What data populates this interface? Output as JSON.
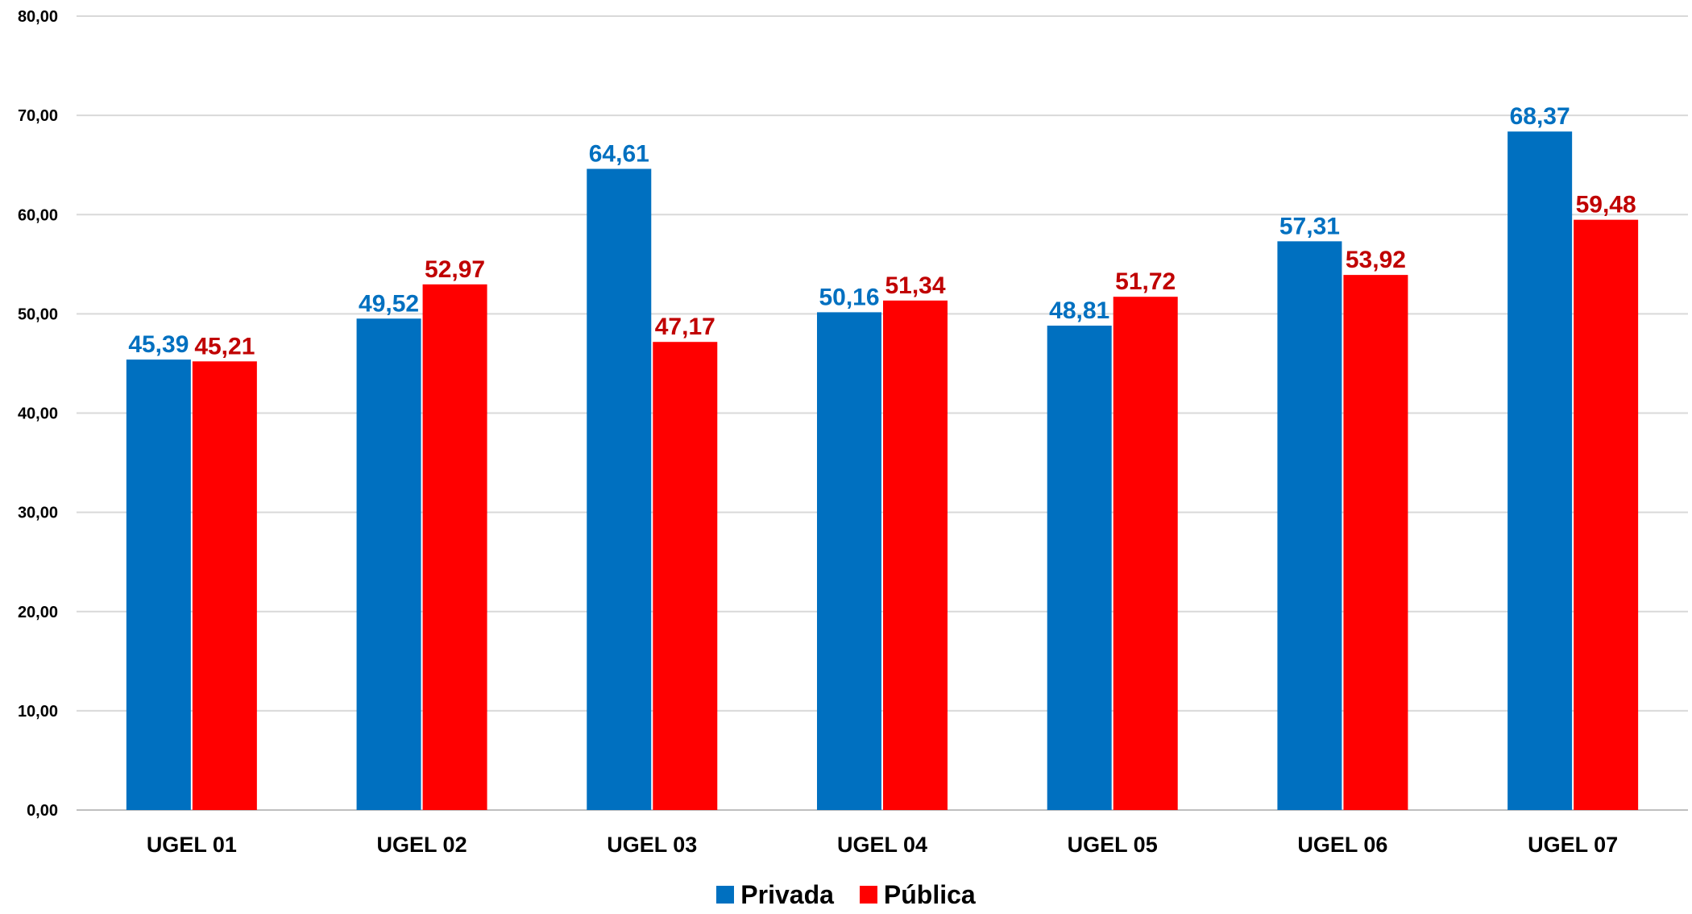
{
  "chart_data": {
    "type": "bar",
    "categories": [
      "UGEL 01",
      "UGEL 02",
      "UGEL 03",
      "UGEL 04",
      "UGEL 05",
      "UGEL 06",
      "UGEL 07"
    ],
    "series": [
      {
        "name": "Privada",
        "color": "#0070C0",
        "label_color": "#0070C0",
        "values": [
          45.39,
          49.52,
          64.61,
          50.16,
          48.81,
          57.31,
          68.37
        ],
        "labels": [
          "45,39",
          "49,52",
          "64,61",
          "50,16",
          "48,81",
          "57,31",
          "68,37"
        ]
      },
      {
        "name": "Pública",
        "color": "#FF0000",
        "label_color": "#C00000",
        "values": [
          45.21,
          52.97,
          47.17,
          51.34,
          51.72,
          53.92,
          59.48
        ],
        "labels": [
          "45,21",
          "52,97",
          "47,17",
          "51,34",
          "51,72",
          "53,92",
          "59,48"
        ]
      }
    ],
    "ylim": [
      0,
      80
    ],
    "y_ticks": [
      "0,00",
      "10,00",
      "20,00",
      "30,00",
      "40,00",
      "50,00",
      "60,00",
      "70,00",
      "80,00"
    ],
    "grid": true,
    "legend_position": "bottom"
  },
  "legend": {
    "privada_label": "Privada",
    "publica_label": "Pública"
  }
}
